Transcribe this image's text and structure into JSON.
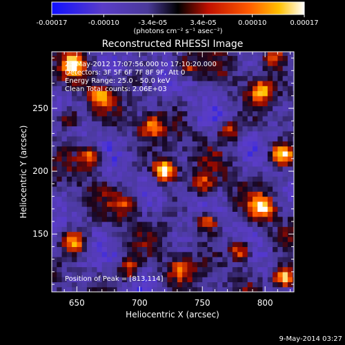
{
  "chart_data": {
    "type": "heatmap",
    "title": "Reconstructed RHESSI Image",
    "xlabel": "Heliocentric X (arcsec)",
    "ylabel": "Heliocentric Y (arcsec)",
    "xlim": [
      630,
      823
    ],
    "ylim": [
      104,
      295
    ],
    "x_ticks": [
      650,
      700,
      750,
      800
    ],
    "y_ticks": [
      150,
      200,
      250
    ],
    "colorbar": {
      "range": [
        -0.00017,
        0.00017
      ],
      "tick_values": [
        -0.00017,
        -0.0001,
        -3.4e-05,
        3.4e-05,
        0.0001,
        0.00017
      ],
      "tick_labels": [
        "-0.00017",
        "-0.00010",
        "-3.4e-05",
        "3.4e-05",
        "0.00010",
        "0.00017"
      ],
      "units_label": "(photons cm⁻² s⁻¹ asec⁻²)",
      "colormap": [
        "#1010ff",
        "#5a3cc8",
        "#4a3a9a",
        "#000000",
        "#c01000",
        "#ff5a00",
        "#ffc000",
        "#ffffff"
      ]
    },
    "annotations": [
      "23-May-2012 17:07:56.000 to 17:10:20.000",
      "Detectors: 3F 5F 6F 7F 8F 9F, Att 0",
      "Energy Range: 25.0 - 50.0 keV",
      "Clean     Total counts: 2.06E+03"
    ],
    "peak_label": "Position of Peak = [813,114]",
    "peak_position": [
      813,
      114
    ],
    "hotspots": [
      {
        "x": 718,
        "y": 199,
        "intensity": 1.0
      },
      {
        "x": 813,
        "y": 114,
        "intensity": 1.0
      },
      {
        "x": 812,
        "y": 212,
        "intensity": 0.85
      },
      {
        "x": 796,
        "y": 170,
        "intensity": 0.8
      },
      {
        "x": 645,
        "y": 283,
        "intensity": 0.75
      },
      {
        "x": 660,
        "y": 210,
        "intensity": 0.7
      },
      {
        "x": 646,
        "y": 142,
        "intensity": 0.65
      },
      {
        "x": 752,
        "y": 158,
        "intensity": 0.6
      },
      {
        "x": 707,
        "y": 234,
        "intensity": 0.55
      },
      {
        "x": 770,
        "y": 230,
        "intensity": 0.55
      },
      {
        "x": 795,
        "y": 262,
        "intensity": 0.6
      },
      {
        "x": 735,
        "y": 280,
        "intensity": 0.5
      },
      {
        "x": 690,
        "y": 120,
        "intensity": 0.55
      },
      {
        "x": 730,
        "y": 120,
        "intensity": 0.45
      },
      {
        "x": 778,
        "y": 135,
        "intensity": 0.65
      },
      {
        "x": 667,
        "y": 258,
        "intensity": 0.55
      },
      {
        "x": 748,
        "y": 188,
        "intensity": 0.45
      },
      {
        "x": 688,
        "y": 172,
        "intensity": 0.4
      },
      {
        "x": 642,
        "y": 240,
        "intensity": 0.55
      },
      {
        "x": 805,
        "y": 290,
        "intensity": 0.55
      }
    ]
  },
  "footer": {
    "date_stamp": "9-May-2014 03:27"
  }
}
